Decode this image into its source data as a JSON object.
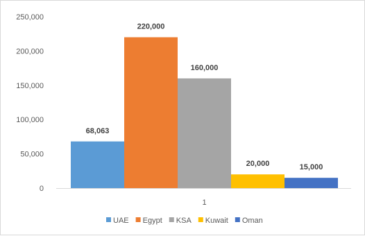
{
  "chart_data": {
    "type": "bar",
    "title": "",
    "xlabel": "",
    "ylabel": "",
    "categories": [
      "1"
    ],
    "ylim": [
      0,
      250000
    ],
    "ytick_values": [
      0,
      50000,
      100000,
      150000,
      200000,
      250000
    ],
    "ytick_labels": [
      "0",
      "50,000",
      "100,000",
      "150,000",
      "200,000",
      "250,000"
    ],
    "grid": false,
    "legend_position": "bottom",
    "series": [
      {
        "name": "UAE",
        "values": [
          68063
        ],
        "label": "68,063",
        "color": "#5b9bd5"
      },
      {
        "name": "Egypt",
        "values": [
          220000
        ],
        "label": "220,000",
        "color": "#ed7d31"
      },
      {
        "name": "KSA",
        "values": [
          160000
        ],
        "label": "160,000",
        "color": "#a5a5a5"
      },
      {
        "name": "Kuwait",
        "values": [
          20000
        ],
        "label": "20,000",
        "color": "#ffc000"
      },
      {
        "name": "Oman",
        "values": [
          15000
        ],
        "label": "15,000",
        "color": "#4472c4"
      }
    ]
  }
}
